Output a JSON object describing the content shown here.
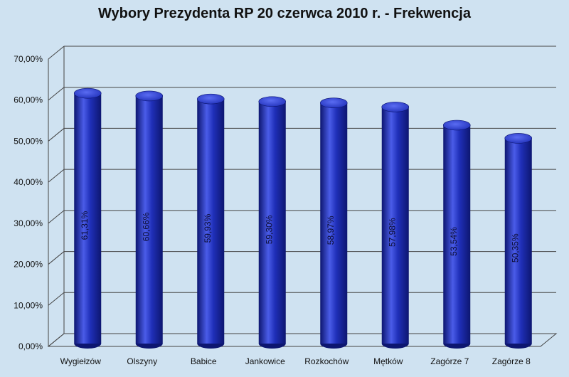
{
  "chart_data": {
    "type": "bar",
    "title": "Wybory Prezydenta RP 20 czerwca 2010 r. - Frekwencja",
    "categories": [
      "Wygiełzów",
      "Olszyny",
      "Babice",
      "Jankowice",
      "Rozkochów",
      "Mętków",
      "Zagórze 7",
      "Zagórze 8"
    ],
    "values": [
      61.31,
      60.66,
      59.93,
      59.3,
      58.97,
      57.98,
      53.54,
      50.35
    ],
    "data_labels": [
      "61,31%",
      "60,66%",
      "59,93%",
      "59,30%",
      "58,97%",
      "57,98%",
      "53,54%",
      "50,35%"
    ],
    "yticks": [
      "0,00%",
      "10,00%",
      "20,00%",
      "30,00%",
      "40,00%",
      "50,00%",
      "60,00%",
      "70,00%"
    ],
    "ylim": [
      0,
      70
    ],
    "grid": true,
    "bar_color": "#1f2fb8",
    "bar_color_dark": "#0d1670",
    "bar_color_light": "#4a5ce8",
    "grid_color": "#444444",
    "background_color": "#cfe2f1"
  }
}
